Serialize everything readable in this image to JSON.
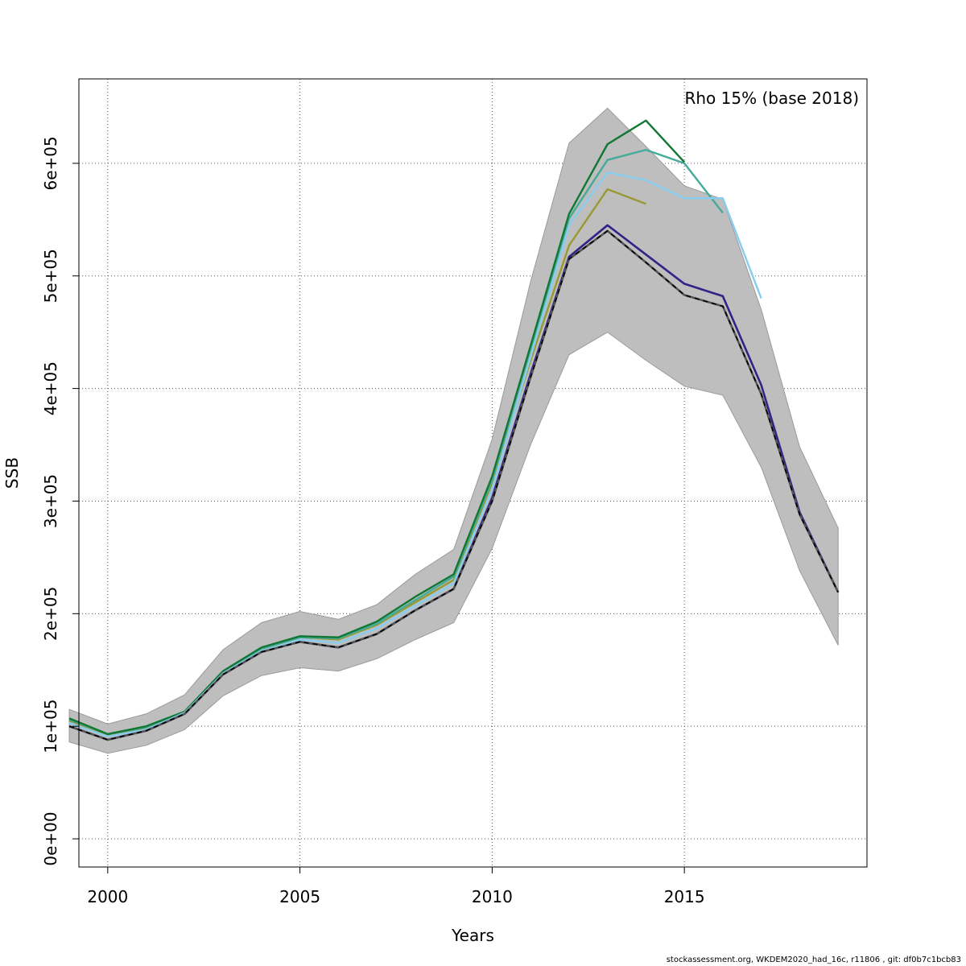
{
  "chart_data": {
    "type": "line",
    "annotation": "Rho 15% (base 2018)",
    "xlabel": "Years",
    "ylabel": "SSB",
    "xlim": [
      1999.25,
      2019.75
    ],
    "ylim": [
      -25000,
      675000
    ],
    "x_ticks": [
      2000,
      2005,
      2010,
      2015
    ],
    "x_tick_labels": [
      "2000",
      "2005",
      "2010",
      "2015"
    ],
    "y_ticks": [
      0,
      100000,
      200000,
      300000,
      400000,
      500000,
      600000
    ],
    "y_tick_labels": [
      "0e+00",
      "1e+05",
      "2e+05",
      "3e+05",
      "4e+05",
      "5e+05",
      "6e+05"
    ],
    "grid": true,
    "band": {
      "color": "#bebebe",
      "x": [
        1999,
        2000,
        2001,
        2002,
        2003,
        2004,
        2005,
        2006,
        2007,
        2008,
        2009,
        2010,
        2011,
        2012,
        2013,
        2014,
        2015,
        2016,
        2017,
        2018,
        2019
      ],
      "upper": [
        115000,
        102000,
        111000,
        128000,
        168000,
        192000,
        202000,
        195000,
        208000,
        235000,
        257000,
        355000,
        495000,
        618000,
        649000,
        615000,
        580000,
        568000,
        470000,
        348000,
        276000
      ],
      "lower": [
        86000,
        76000,
        83000,
        97000,
        127000,
        145000,
        152000,
        149000,
        160000,
        177000,
        192000,
        258000,
        350000,
        430000,
        450000,
        425000,
        402000,
        394000,
        330000,
        238000,
        172000
      ]
    },
    "series": [
      {
        "color": "#332288",
        "width": 2.6,
        "x": [
          1999,
          2000,
          2001,
          2002,
          2003,
          2004,
          2005,
          2006,
          2007,
          2008,
          2009,
          2010,
          2011,
          2012,
          2013,
          2014,
          2015,
          2016,
          2017,
          2018,
          2019
        ],
        "values": [
          100000,
          88000,
          96000,
          111000,
          146000,
          166000,
          175000,
          170000,
          182000,
          203000,
          222000,
          303000,
          413000,
          517000,
          545000,
          519000,
          493000,
          482000,
          403000,
          290000,
          219000
        ]
      },
      {
        "color": "#999933",
        "width": 2.4,
        "x": [
          1999,
          2000,
          2001,
          2002,
          2003,
          2004,
          2005,
          2006,
          2007,
          2008,
          2009,
          2010,
          2011,
          2012,
          2013,
          2014
        ],
        "values": [
          105000,
          92000,
          98000,
          112000,
          148000,
          168000,
          179000,
          177000,
          190000,
          210000,
          230000,
          316000,
          425000,
          527000,
          577000,
          564000
        ]
      },
      {
        "color": "#44AA99",
        "width": 2.4,
        "x": [
          1999,
          2000,
          2001,
          2002,
          2003,
          2004,
          2005,
          2006,
          2007,
          2008,
          2009,
          2010,
          2011,
          2012,
          2013,
          2014,
          2015,
          2016
        ],
        "values": [
          106000,
          93000,
          99000,
          113000,
          148000,
          169000,
          179000,
          178000,
          191000,
          212000,
          233000,
          319000,
          435000,
          551000,
          603000,
          612000,
          600000,
          556000
        ]
      },
      {
        "color": "#117733",
        "width": 2.4,
        "x": [
          1999,
          2000,
          2001,
          2002,
          2003,
          2004,
          2005,
          2006,
          2007,
          2008,
          2009,
          2010,
          2011,
          2012,
          2013,
          2014,
          2015
        ],
        "values": [
          107000,
          93000,
          100000,
          113000,
          149000,
          170000,
          180000,
          179000,
          193000,
          215000,
          235000,
          322000,
          438000,
          555000,
          617000,
          638000,
          601000
        ]
      },
      {
        "color": "#88CCEE",
        "width": 2.4,
        "x": [
          1999,
          2000,
          2001,
          2002,
          2003,
          2004,
          2005,
          2006,
          2007,
          2008,
          2009,
          2010,
          2011,
          2012,
          2013,
          2014,
          2015,
          2016,
          2017
        ],
        "values": [
          103000,
          91000,
          97000,
          112000,
          147000,
          167000,
          177000,
          174000,
          187000,
          207000,
          227000,
          311000,
          428000,
          545000,
          592000,
          585000,
          569000,
          569000,
          480000
        ]
      },
      {
        "color": "#555555",
        "width": 2.6,
        "x": [
          1999,
          2000,
          2001,
          2002,
          2003,
          2004,
          2005,
          2006,
          2007,
          2008,
          2009,
          2010,
          2011,
          2012,
          2013,
          2014,
          2015,
          2016,
          2017,
          2018,
          2019
        ],
        "values": [
          100000,
          88000,
          96000,
          111000,
          146000,
          166000,
          175000,
          170000,
          182000,
          203000,
          222000,
          300000,
          410000,
          515000,
          540000,
          512000,
          483000,
          473000,
          395000,
          288000,
          219000
        ]
      },
      {
        "color": "#000000",
        "width": 1.6,
        "dash": "6,5",
        "x": [
          1999,
          2000,
          2001,
          2002,
          2003,
          2004,
          2005,
          2006,
          2007,
          2008,
          2009,
          2010,
          2011,
          2012,
          2013,
          2014,
          2015,
          2016,
          2017,
          2018,
          2019
        ],
        "values": [
          100000,
          88000,
          96000,
          111000,
          146000,
          166000,
          175000,
          170000,
          182000,
          203000,
          222000,
          300000,
          410000,
          515000,
          540000,
          512000,
          483000,
          473000,
          395000,
          288000,
          219000
        ]
      }
    ]
  },
  "footer": "stockassessment.org, WKDEM2020_had_16c, r11806 , git: df0b7c1bcb83"
}
